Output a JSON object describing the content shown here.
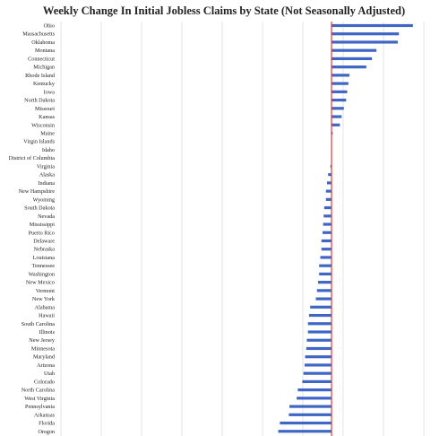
{
  "chart_data": {
    "type": "bar",
    "orientation": "horizontal",
    "title": "Weekly Change In Initial Jobless Claims by State (Not Seasonally Adjusted)",
    "xlabel": "",
    "ylabel": "",
    "grid": true,
    "xlim": [
      -5,
      1.5
    ],
    "categories": [
      "Ohio",
      "Massachusetts",
      "Oklahoma",
      "Montana",
      "Connecticut",
      "Michigan",
      "Rhode Island",
      "Kentucky",
      "Iowa",
      "North Dakota",
      "Missouri",
      "Kansas",
      "Wisconsin",
      "Maine",
      "Virgin Islands",
      "Idaho",
      "District of Columbia",
      "Virginia",
      "Alaska",
      "Indiana",
      "New Hampshire",
      "Wyoming",
      "South Dakota",
      "Nevada",
      "Mississippi",
      "Puerto Rico",
      "Delaware",
      "Nebraska",
      "Louisiana",
      "Tennessee",
      "Washington",
      "New Mexico",
      "Vermont",
      "New York",
      "Alabama",
      "Hawaii",
      "South Carolina",
      "Illinois",
      "New Jersey",
      "Minnesota",
      "Maryland",
      "Arizona",
      "Utah",
      "Colorado",
      "North Carolina",
      "West Virginia",
      "Pennsylvania",
      "Arkansas",
      "Florida",
      "Oregon"
    ],
    "values": [
      1.45,
      1.2,
      1.18,
      0.8,
      0.72,
      0.62,
      0.32,
      0.3,
      0.28,
      0.26,
      0.22,
      0.18,
      0.15,
      0.02,
      0.0,
      0.0,
      0.0,
      -0.02,
      -0.06,
      -0.08,
      -0.1,
      -0.1,
      -0.13,
      -0.14,
      -0.15,
      -0.16,
      -0.18,
      -0.18,
      -0.2,
      -0.22,
      -0.22,
      -0.24,
      -0.26,
      -0.28,
      -0.38,
      -0.4,
      -0.42,
      -0.42,
      -0.44,
      -0.45,
      -0.47,
      -0.48,
      -0.5,
      -0.52,
      -0.6,
      -0.62,
      -0.75,
      -0.76,
      -0.92,
      -0.95
    ]
  }
}
